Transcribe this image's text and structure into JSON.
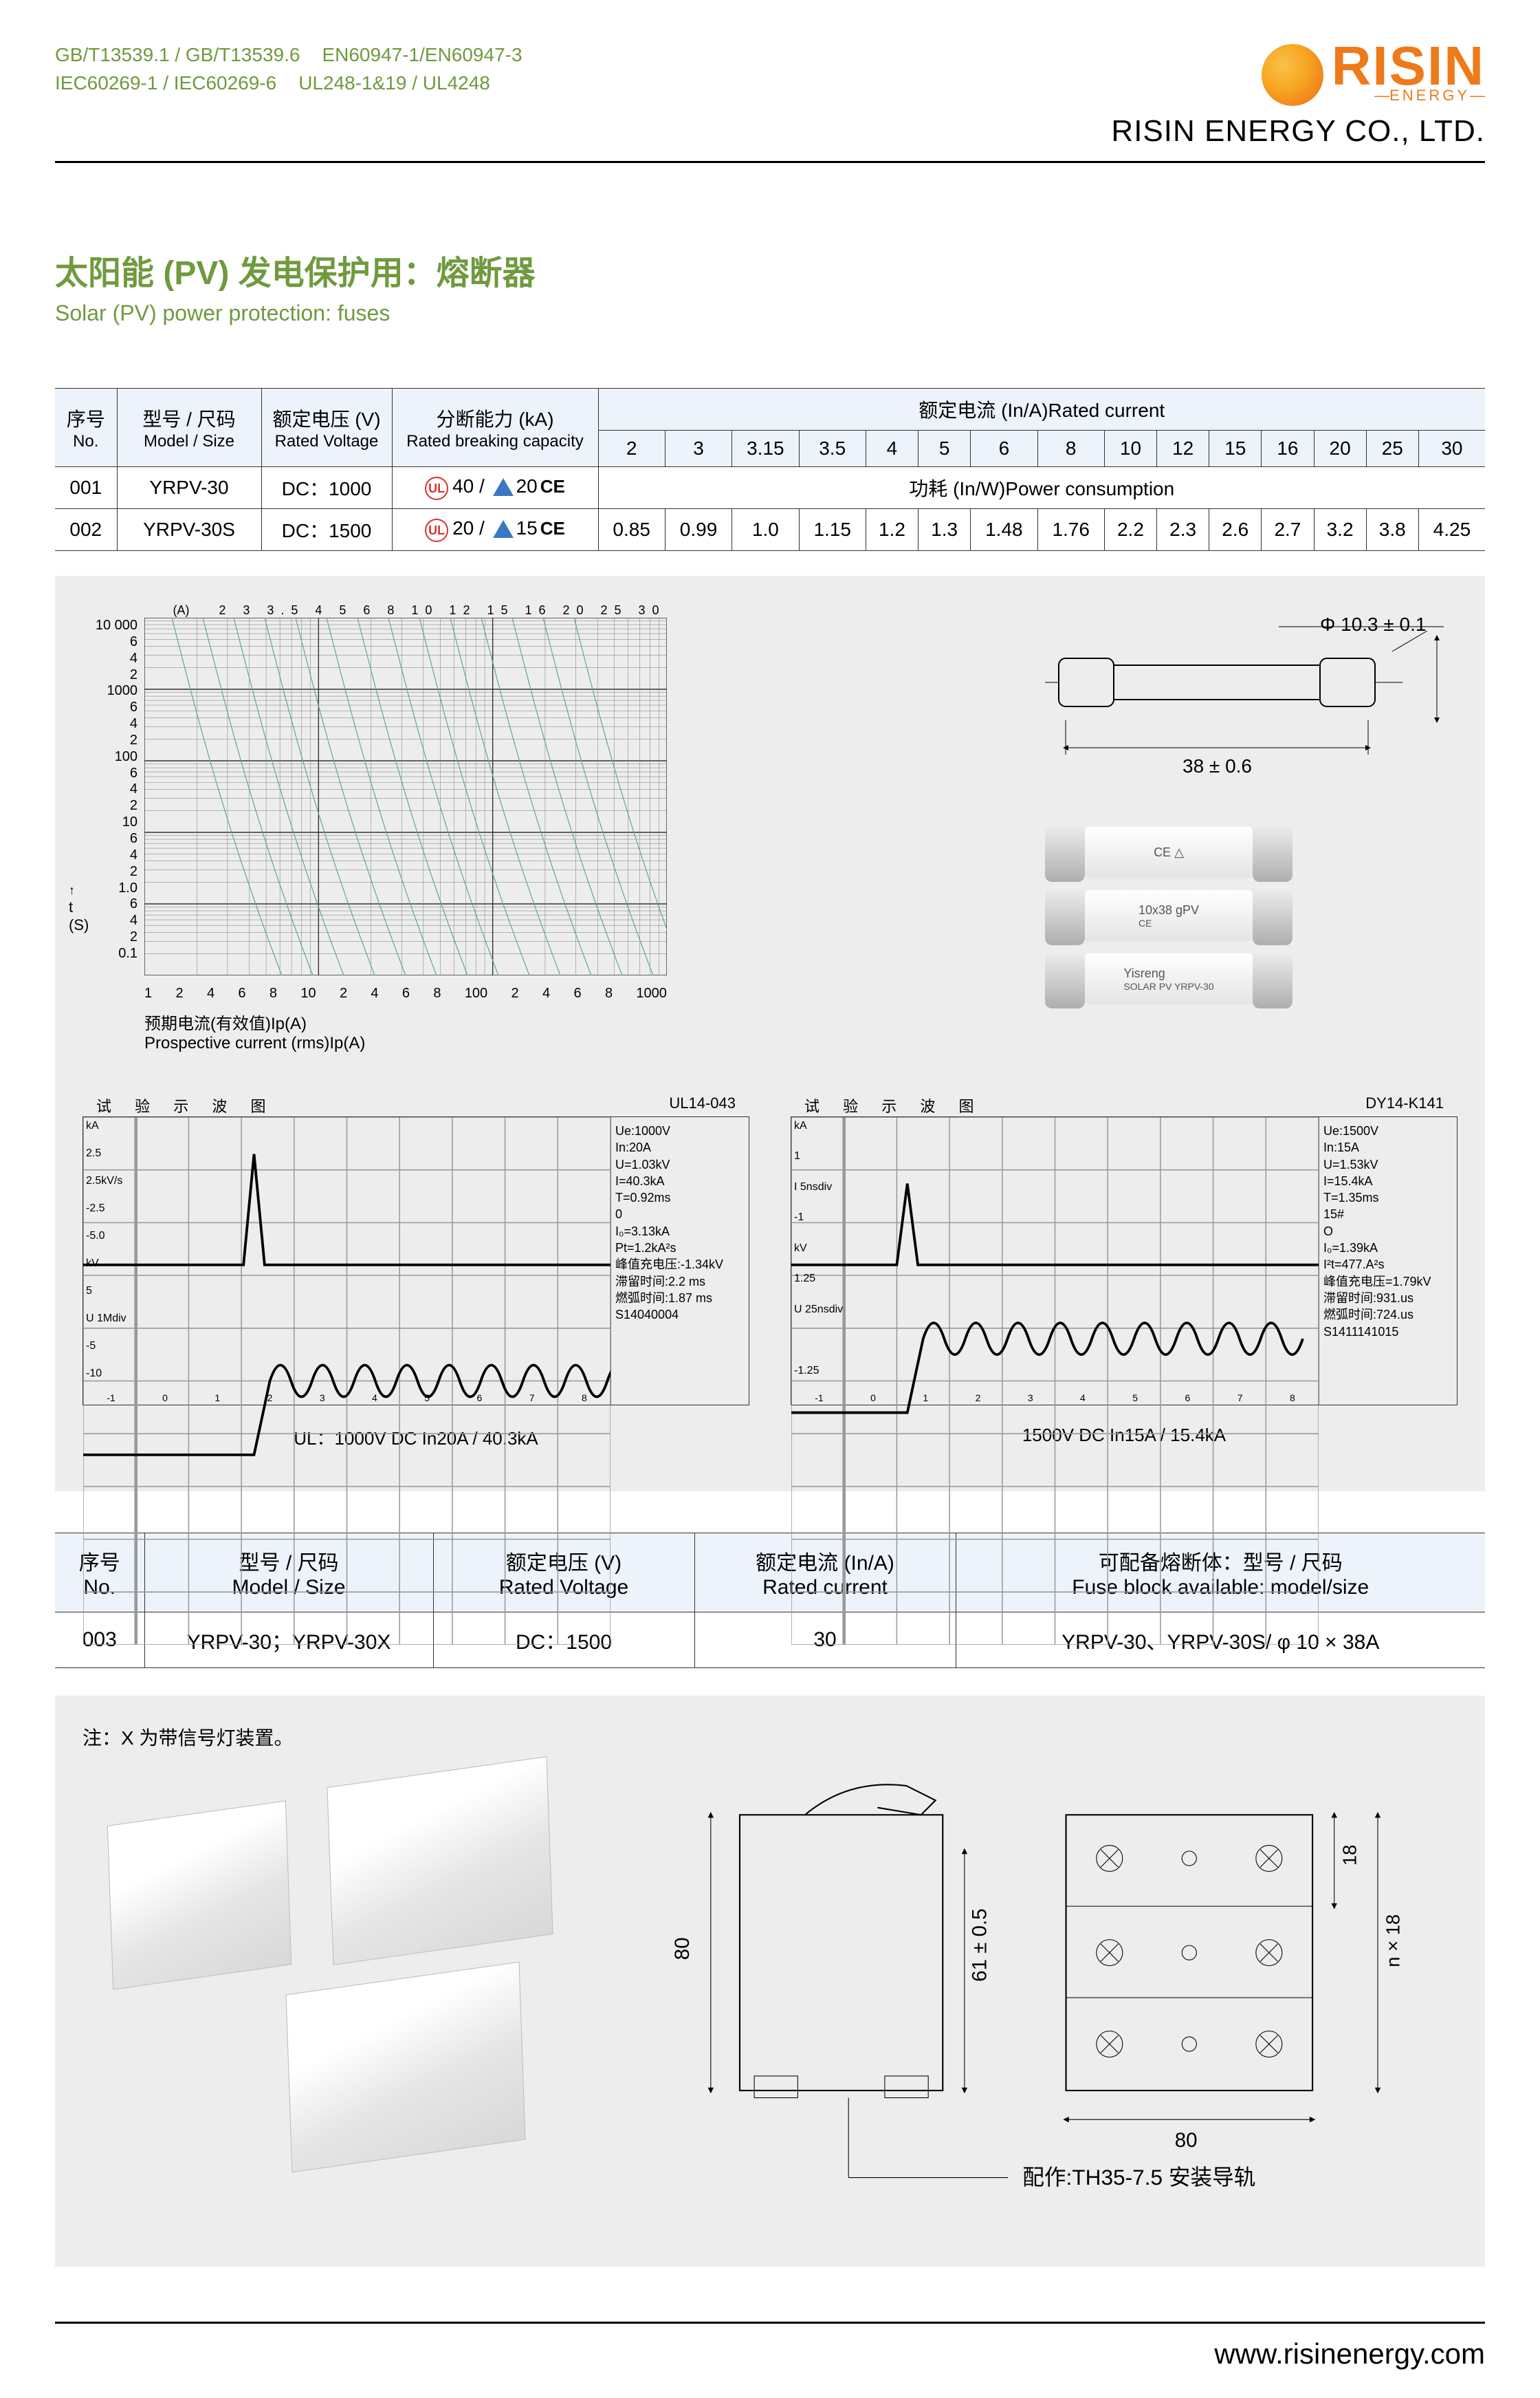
{
  "header": {
    "standards_row1": [
      "GB/T13539.1 / GB/T13539.6",
      "EN60947-1/EN60947-3"
    ],
    "standards_row2": [
      "IEC60269-1 / IEC60269-6",
      "UL248-1&19 / UL4248"
    ],
    "standards_color": "#6f9a3e",
    "brand": "RISIN",
    "brand_sub": "ENERGY",
    "brand_color": "#ee7a1a",
    "company": "RISIN ENERGY CO., LTD."
  },
  "title": {
    "cn": "太阳能 (PV) 发电保护用：熔断器",
    "en": "Solar (PV) power protection: fuses",
    "cn_color": "#6f9a3e",
    "en_color": "#6f9a3e"
  },
  "table1": {
    "headers": {
      "no_cn": "序号",
      "no_en": "No.",
      "model_cn": "型号 / 尺码",
      "model_en": "Model / Size",
      "volt_cn": "额定电压 (V)",
      "volt_en": "Rated Voltage",
      "break_cn": "分断能力 (kA)",
      "break_en": "Rated breaking capacity",
      "rated_current": "额定电流 (In/A)Rated current",
      "power": "功耗 (In/W)Power consumption"
    },
    "current_values": [
      "2",
      "3",
      "3.15",
      "3.5",
      "4",
      "5",
      "6",
      "8",
      "10",
      "12",
      "15",
      "16",
      "20",
      "25",
      "30"
    ],
    "rows": [
      {
        "no": "001",
        "model": "YRPV-30",
        "volt": "DC：1000",
        "brk_a": "40",
        "brk_b": "20"
      },
      {
        "no": "002",
        "model": "YRPV-30S",
        "volt": "DC：1500",
        "brk_a": "20",
        "brk_b": "15"
      }
    ],
    "power_values": [
      "0.85",
      "0.99",
      "1.0",
      "1.15",
      "1.2",
      "1.3",
      "1.48",
      "1.76",
      "2.2",
      "2.3",
      "2.6",
      "2.7",
      "3.2",
      "3.8",
      "4.25"
    ]
  },
  "chart": {
    "type": "log-log time-current curves",
    "y_ticks": [
      "10 000",
      "6",
      "4",
      "2",
      "1000",
      "6",
      "4",
      "2",
      "100",
      "6",
      "4",
      "2",
      "10",
      "6",
      "4",
      "2",
      "1.0",
      "6",
      "4",
      "2",
      "0.1"
    ],
    "x_ticks": [
      "1",
      "2",
      "4",
      "6",
      "8",
      "10",
      "2",
      "4",
      "6",
      "8",
      "100",
      "2",
      "4",
      "6",
      "8",
      "1000"
    ],
    "y_axis_label_cn": "t",
    "y_axis_label_unit": "(S)",
    "x_caption_cn": "预期电流(有效值)Ip(A)",
    "x_caption_en": "Prospective current (rms)Ip(A)",
    "top_labels": "2 3 3.5 4 5 6 8 10 12 15 16 20 25 30",
    "top_unit": "(A)",
    "grid_color": "#333333",
    "curve_color": "#5aa89e",
    "background": "#ededed"
  },
  "fuse_dim": {
    "dia": "Φ 10.3 ± 0.1",
    "len": "38 ± 0.6"
  },
  "fuse_photos": [
    {
      "label": "CE △",
      "sub": ""
    },
    {
      "label": "10x38 gPV",
      "sub": "CE"
    },
    {
      "label": "Yisreng",
      "sub": "SOLAR PV YRPV-30"
    }
  ],
  "waveforms": [
    {
      "title_cn": "试 验 示 波 图",
      "id": "UL14-043",
      "y_labels_left": [
        "kA",
        "2.5",
        "2.5kV/s",
        "-2.5",
        "-5.0",
        "kV",
        "5",
        "U 1Mdiv",
        "-5",
        "-10"
      ],
      "x_ticks": [
        "-1",
        "0",
        "1",
        "2",
        "3",
        "4",
        "5",
        "6",
        "7",
        "8"
      ],
      "info": [
        "Ue:1000V",
        "In:20A",
        "",
        "U=1.03kV",
        "I=40.3kA",
        "T=0.92ms",
        "0",
        "I₀=3.13kA",
        "Pt=1.2kA²s",
        "峰值充电压:-1.34kV",
        "滞留时间:2.2 ms",
        "燃弧时间:1.87 ms",
        "S14040004"
      ],
      "caption": "UL：1000V DC  In20A / 40.3kA",
      "spike_x": 0.28,
      "spike_ht": 0.75,
      "osc_y": 0.64
    },
    {
      "title_cn": "试 验 示 波 图",
      "id": "DY14-K141",
      "y_labels_left": [
        "kA",
        "1",
        "I 5nsdiv",
        "-1",
        "kV",
        "1.25",
        "U 25nsdiv",
        "",
        "-1.25"
      ],
      "x_ticks": [
        "-1",
        "0",
        "1",
        "2",
        "3",
        "4",
        "5",
        "6",
        "7",
        "8"
      ],
      "info": [
        "Ue:1500V",
        "In:15A",
        "",
        "U=1.53kV",
        "I=15.4kA",
        "T=1.35ms",
        "15#",
        "O",
        "I₀=1.39kA",
        "I²t=477.A²s",
        "峰值充电压=1.79kV",
        "滞留时间:931.us",
        "燃弧时间:724.us",
        "S1411141015"
      ],
      "caption": "1500V DC  In15A / 15.4kA",
      "spike_x": 0.15,
      "spike_ht": 0.55,
      "osc_y": 0.56
    }
  ],
  "table2": {
    "headers": {
      "no_cn": "序号",
      "no_en": "No.",
      "model_cn": "型号 / 尺码",
      "model_en": "Model / Size",
      "volt_cn": "额定电压 (V)",
      "volt_en": "Rated Voltage",
      "curr_cn": "额定电流 (In/A)",
      "curr_en": "Rated current",
      "block_cn": "可配备熔断体：型号 / 尺码",
      "block_en": "Fuse block available: model/size"
    },
    "row": {
      "no": "003",
      "model": "YRPV-30；YRPV-30X",
      "volt": "DC：1500",
      "curr": "30",
      "block": "YRPV-30、YRPV-30S/ φ 10 × 38A"
    }
  },
  "note": "注：X 为带信号灯装置。",
  "holder_dims": {
    "h": "80",
    "h2": "61 ± 0.5",
    "w": "80",
    "rh": "18",
    "rn": "n × 18",
    "rail": "配作:TH35-7.5 安装导轨"
  },
  "footer": {
    "url": "www.risinenergy.com"
  }
}
